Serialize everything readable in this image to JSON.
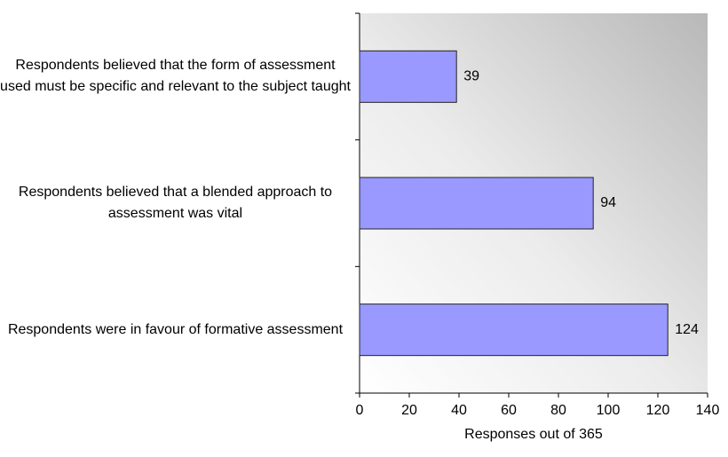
{
  "chart_data": {
    "type": "bar",
    "orientation": "horizontal",
    "categories": [
      "Respondents believed that the form of assessment used must be specific and relevant to the subject taught",
      "Respondents believed that a blended approach to assessment was vital",
      "Respondents were in favour of formative assessment"
    ],
    "values": [
      39,
      94,
      124
    ],
    "color": "#9999ff",
    "xlabel": "Responses out of 365",
    "xlim": [
      0,
      140
    ],
    "xticks": [
      0,
      20,
      40,
      60,
      80,
      100,
      120,
      140
    ]
  }
}
